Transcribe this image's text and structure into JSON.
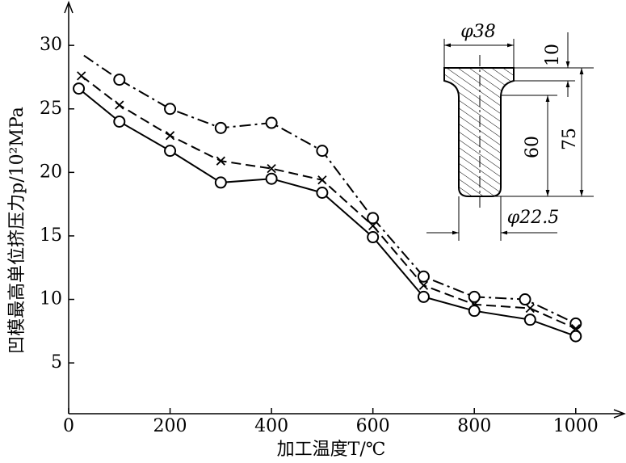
{
  "chart_data": {
    "type": "line",
    "x_label": "加工温度T/℃",
    "y_label": "凹模最高单位挤压力p/10²MPa",
    "xlim": [
      0,
      1080
    ],
    "ylim": [
      1,
      33
    ],
    "xticks": [
      0,
      200,
      400,
      600,
      800,
      1000
    ],
    "yticks": [
      5,
      10,
      15,
      20,
      25,
      30
    ],
    "color": "#000000",
    "series": [
      {
        "marker": "circle",
        "linestyle": "dashdot",
        "x": [
          30,
          100,
          200,
          300,
          400,
          500,
          600,
          700,
          800,
          900,
          1000
        ],
        "values": [
          29.2,
          27.3,
          25.0,
          23.5,
          23.9,
          21.7,
          16.4,
          11.8,
          10.2,
          10.0,
          8.1
        ]
      },
      {
        "marker": "cross",
        "linestyle": "dashed",
        "x": [
          25,
          100,
          200,
          300,
          400,
          500,
          600,
          700,
          800,
          910,
          1000
        ],
        "values": [
          27.6,
          25.3,
          22.9,
          20.9,
          20.3,
          19.4,
          15.8,
          11.1,
          9.6,
          9.3,
          7.7
        ]
      },
      {
        "marker": "circle",
        "linestyle": "solid",
        "x": [
          20,
          100,
          200,
          300,
          400,
          500,
          600,
          700,
          800,
          910,
          1000
        ],
        "values": [
          26.6,
          24.0,
          21.7,
          19.2,
          19.5,
          18.4,
          14.9,
          10.2,
          9.1,
          8.4,
          7.1
        ]
      }
    ],
    "annotations": [
      "φ38",
      "10",
      "60",
      "75",
      "φ22.5"
    ]
  }
}
